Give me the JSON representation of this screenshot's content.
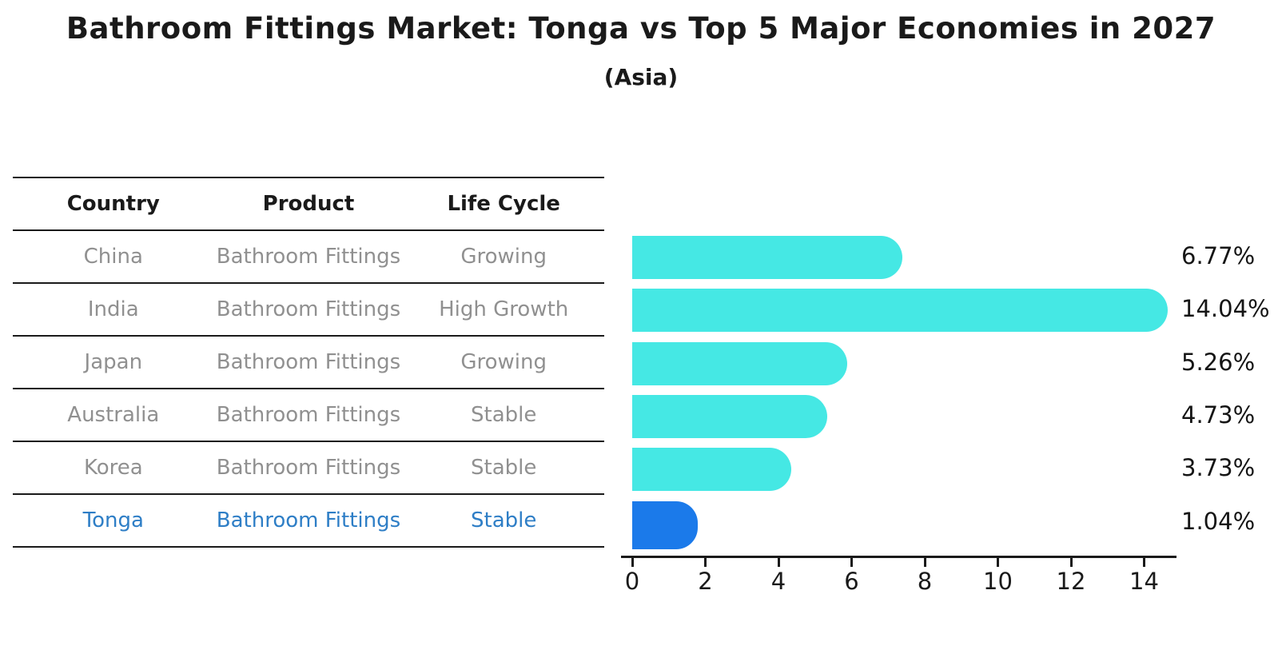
{
  "chart_data": {
    "type": "bar",
    "orientation": "horizontal",
    "title": "Bathroom Fittings Market: Tonga vs Top 5 Major Economies in 2027",
    "subtitle": "(Asia)",
    "xlabel": "",
    "ylabel": "",
    "categories": [
      "China",
      "India",
      "Japan",
      "Australia",
      "Korea",
      "Tonga"
    ],
    "values": [
      6.77,
      14.04,
      5.26,
      4.73,
      3.73,
      1.04
    ],
    "value_labels": [
      "6.77%",
      "14.04%",
      "5.26%",
      "4.73%",
      "3.73%",
      "1.04%"
    ],
    "xticks": [
      0,
      2,
      4,
      6,
      8,
      10,
      12,
      14
    ],
    "xlim": [
      0,
      14.9
    ],
    "grid": false,
    "legend": "none",
    "highlight_index": 5
  },
  "table": {
    "headers": [
      "Country",
      "Product",
      "Life Cycle"
    ],
    "rows": [
      [
        "China",
        "Bathroom Fittings",
        "Growing"
      ],
      [
        "India",
        "Bathroom Fittings",
        "High Growth"
      ],
      [
        "Japan",
        "Bathroom Fittings",
        "Growing"
      ],
      [
        "Australia",
        "Bathroom Fittings",
        "Stable"
      ],
      [
        "Korea",
        "Bathroom Fittings",
        "Stable"
      ],
      [
        "Tonga",
        "Bathroom Fittings",
        "Stable"
      ]
    ],
    "highlight_row": "Tonga"
  },
  "colors": {
    "bar": "#45E8E4",
    "highlight_bar": "#1B7AEA",
    "highlight_text": "#2E7EC6",
    "muted_text": "#909090",
    "text": "#1a1a1a"
  }
}
